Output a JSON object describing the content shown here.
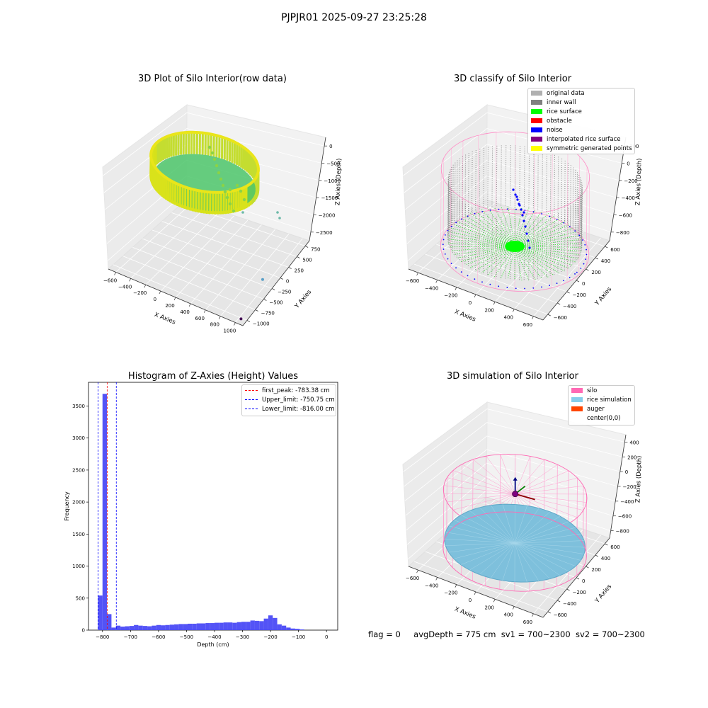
{
  "figure": {
    "suptitle": "PJPJR01 2025-09-27 23:25:28",
    "status": {
      "flag": "flag = 0",
      "avg_depth": "avgDepth = 775 cm",
      "sv1": "sv1 = 700~2300",
      "sv2": "sv2 = 700~2300"
    }
  },
  "colors": {
    "original_data": "#b0b0b0",
    "inner_wall": "#808080",
    "rice_surface": "#00ff00",
    "obstacle": "#ff0000",
    "noise": "#0000ff",
    "interpolated_rice_surface": "#800080",
    "symmetric_generated_points": "#ffff00",
    "silo": "#ff69b4",
    "rice_simulation": "#87ceeb",
    "auger": "#ff4500",
    "hist_bar": "#4a4af5"
  },
  "chart_data": [
    {
      "type": "scatter",
      "title": "3D Plot of Silo Interior(row data)",
      "xlabel": "X Axies",
      "ylabel": "Y Axies",
      "zlabel": "Z Axies (Depth)",
      "x_ticks": [
        "−600",
        "−400",
        "−200",
        "0",
        "200",
        "400",
        "600",
        "800",
        "1000"
      ],
      "y_ticks": [
        "−1000",
        "−750",
        "−500",
        "−250",
        "0",
        "250",
        "500",
        "750"
      ],
      "z_ticks": [
        "0",
        "−500",
        "−1000",
        "−1500",
        "−2000",
        "−2500"
      ],
      "xlim": [
        -650,
        1050
      ],
      "ylim": [
        -1050,
        800
      ],
      "zlim": [
        -2800,
        100
      ],
      "series": [
        {
          "values": [
            {
              "x": 0,
              "y": 0,
              "z": -780
            },
            {
              "x": 300,
              "y": 300,
              "z": -780
            },
            {
              "x": 500,
              "y": -200,
              "z": -1500
            },
            {
              "x": 900,
              "y": -300,
              "z": -2400
            },
            {
              "x": 1000,
              "y": -1000,
              "z": -2700
            }
          ]
        }
      ],
      "cylinder": {
        "radius": 600,
        "z_top": 0,
        "z_bottom": -780
      }
    },
    {
      "type": "scatter",
      "title": "3D classify of Silo Interior",
      "xlabel": "X Axies",
      "ylabel": "Y Axies",
      "zlabel": "Z Axies (Depth)",
      "x_ticks": [
        "−600",
        "−400",
        "−200",
        "0",
        "200",
        "400",
        "600"
      ],
      "y_ticks": [
        "−600",
        "−400",
        "−200",
        "0",
        "200",
        "400",
        "600"
      ],
      "z_ticks": [
        "200",
        "0",
        "−200",
        "−400",
        "−600",
        "−800"
      ],
      "xlim": [
        -650,
        650
      ],
      "ylim": [
        -650,
        650
      ],
      "zlim": [
        -900,
        300
      ],
      "legend": [
        "original data",
        "inner wall",
        "rice surface",
        "obstacle",
        "noise",
        "interpolated rice surface",
        "symmetric generated points"
      ]
    },
    {
      "type": "bar",
      "title": "Histogram of Z-Axies (Height) Values",
      "xlabel": "Depth (cm)",
      "ylabel": "Frequency",
      "x_ticks": [
        "−800",
        "−700",
        "−600",
        "−500",
        "−400",
        "−300",
        "−200",
        "−100",
        "0"
      ],
      "y_ticks": [
        "0",
        "500",
        "1000",
        "1500",
        "2000",
        "2500",
        "3000",
        "3500"
      ],
      "xlim": [
        -850,
        40
      ],
      "ylim": [
        0,
        3870
      ],
      "bin_width": 16,
      "bins_start": -816,
      "values": [
        540,
        3690,
        250,
        40,
        70,
        55,
        60,
        65,
        80,
        70,
        65,
        60,
        70,
        80,
        75,
        80,
        85,
        90,
        95,
        95,
        100,
        100,
        105,
        105,
        110,
        110,
        115,
        115,
        120,
        120,
        115,
        125,
        130,
        130,
        150,
        145,
        140,
        180,
        230,
        190,
        90,
        70,
        40,
        25,
        20,
        10
      ],
      "lines": [
        {
          "label": "first_peak: -783.38 cm",
          "x": -783.38,
          "color": "#ff0000"
        },
        {
          "label": "Upper_limit: -750.75 cm",
          "x": -750.75,
          "color": "#0000ff"
        },
        {
          "label": "Lower_limit: -816.00 cm",
          "x": -816.0,
          "color": "#0000ff"
        }
      ]
    },
    {
      "type": "scatter",
      "title": "3D simulation of Silo Interior",
      "xlabel": "X Axies",
      "ylabel": "Y Axies",
      "zlabel": "Z Axies (Depth)",
      "x_ticks": [
        "−600",
        "−400",
        "−200",
        "0",
        "200",
        "400",
        "600"
      ],
      "y_ticks": [
        "−600",
        "−400",
        "−200",
        "0",
        "200",
        "400",
        "600"
      ],
      "z_ticks": [
        "400",
        "200",
        "0",
        "−200",
        "−400",
        "−600",
        "−800"
      ],
      "xlim": [
        -650,
        650
      ],
      "ylim": [
        -650,
        650
      ],
      "zlim": [
        -900,
        450
      ],
      "legend": [
        "silo",
        "rice simulation",
        "auger",
        "center(0,0)"
      ]
    }
  ]
}
